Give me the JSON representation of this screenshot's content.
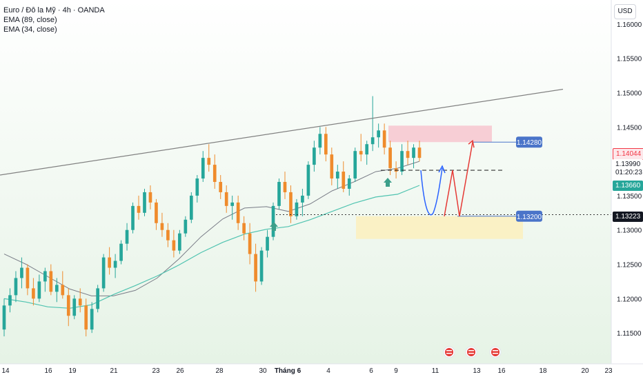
{
  "legend": {
    "symbol": "Euro / Đô la Mỹ · 4h · OANDA",
    "ema1": "EMA (89, close)",
    "ema2": "EMA (34, close)"
  },
  "axis": {
    "currency_button": "USD"
  },
  "colors": {
    "up": "#26a69a",
    "down": "#ef8b2c",
    "ema89": "#787b86",
    "ema34": "#4fc3b0",
    "trend": "#808080",
    "resistance_zone": "#f7c6cf",
    "support_zone": "#fbf0c0",
    "label_blue": "#4a74c9",
    "last_price": "#f23645",
    "arrow_blue": "#2962ff",
    "arrow_red": "#e53935"
  },
  "chart_data": {
    "type": "candlestick",
    "instrument": "Euro / Đô la Mỹ",
    "timeframe": "4h",
    "source": "OANDA",
    "ylim": [
      1.1105,
      1.1635
    ],
    "y_ticks": [
      1.115,
      1.12,
      1.125,
      1.13,
      1.135,
      1.14,
      1.145,
      1.15,
      1.155,
      1.16
    ],
    "y_tick_labels": [
      "1.11500",
      "1.12000",
      "1.12500",
      "1.13000",
      "1.13500",
      "1.14000",
      "1.14500",
      "1.15000",
      "1.15500",
      "1.16000"
    ],
    "x_tick_labels": [
      "14",
      "16",
      "19",
      "21",
      "23",
      "26",
      "28",
      "30",
      "Tháng 6",
      "4",
      "6",
      "9",
      "11",
      "13",
      "16",
      "18",
      "20",
      "23"
    ],
    "ohlc": [
      [
        1.1155,
        1.12,
        1.1145,
        1.119
      ],
      [
        1.119,
        1.1215,
        1.118,
        1.1205
      ],
      [
        1.1205,
        1.124,
        1.1195,
        1.123
      ],
      [
        1.123,
        1.126,
        1.1215,
        1.1245
      ],
      [
        1.1245,
        1.125,
        1.1205,
        1.1215
      ],
      [
        1.1215,
        1.123,
        1.119,
        1.12
      ],
      [
        1.12,
        1.1235,
        1.1195,
        1.1225
      ],
      [
        1.1225,
        1.1245,
        1.121,
        1.124
      ],
      [
        1.124,
        1.125,
        1.1205,
        1.121
      ],
      [
        1.121,
        1.123,
        1.1195,
        1.122
      ],
      [
        1.122,
        1.124,
        1.12,
        1.1205
      ],
      [
        1.1205,
        1.1215,
        1.116,
        1.1175
      ],
      [
        1.1175,
        1.1205,
        1.117,
        1.12
      ],
      [
        1.12,
        1.1215,
        1.118,
        1.119
      ],
      [
        1.119,
        1.12,
        1.1145,
        1.1155
      ],
      [
        1.1155,
        1.1195,
        1.115,
        1.1185
      ],
      [
        1.1185,
        1.122,
        1.118,
        1.1215
      ],
      [
        1.1215,
        1.1265,
        1.121,
        1.126
      ],
      [
        1.126,
        1.1275,
        1.1235,
        1.1245
      ],
      [
        1.1245,
        1.1265,
        1.123,
        1.1255
      ],
      [
        1.1255,
        1.1285,
        1.125,
        1.128
      ],
      [
        1.128,
        1.131,
        1.127,
        1.13
      ],
      [
        1.13,
        1.134,
        1.1295,
        1.1335
      ],
      [
        1.1335,
        1.135,
        1.1315,
        1.1325
      ],
      [
        1.1325,
        1.136,
        1.132,
        1.1355
      ],
      [
        1.1355,
        1.1365,
        1.133,
        1.134
      ],
      [
        1.134,
        1.1345,
        1.13,
        1.131
      ],
      [
        1.131,
        1.1325,
        1.129,
        1.13
      ],
      [
        1.13,
        1.131,
        1.1275,
        1.1285
      ],
      [
        1.1285,
        1.13,
        1.126,
        1.127
      ],
      [
        1.127,
        1.13,
        1.1265,
        1.1295
      ],
      [
        1.1295,
        1.132,
        1.129,
        1.1315
      ],
      [
        1.1315,
        1.1355,
        1.131,
        1.135
      ],
      [
        1.135,
        1.138,
        1.134,
        1.1375
      ],
      [
        1.1375,
        1.1415,
        1.137,
        1.1405
      ],
      [
        1.1405,
        1.1425,
        1.1385,
        1.1395
      ],
      [
        1.1395,
        1.141,
        1.136,
        1.137
      ],
      [
        1.137,
        1.138,
        1.1345,
        1.1355
      ],
      [
        1.1355,
        1.1365,
        1.1325,
        1.1335
      ],
      [
        1.1335,
        1.135,
        1.1315,
        1.134
      ],
      [
        1.134,
        1.135,
        1.13,
        1.131
      ],
      [
        1.131,
        1.132,
        1.1285,
        1.1295
      ],
      [
        1.1295,
        1.131,
        1.125,
        1.1265
      ],
      [
        1.1265,
        1.128,
        1.121,
        1.1225
      ],
      [
        1.1225,
        1.1275,
        1.122,
        1.127
      ],
      [
        1.127,
        1.13,
        1.126,
        1.129
      ],
      [
        1.129,
        1.134,
        1.1285,
        1.1335
      ],
      [
        1.1335,
        1.1375,
        1.133,
        1.137
      ],
      [
        1.137,
        1.1385,
        1.1345,
        1.1355
      ],
      [
        1.1355,
        1.1365,
        1.131,
        1.132
      ],
      [
        1.132,
        1.1345,
        1.1315,
        1.134
      ],
      [
        1.134,
        1.136,
        1.132,
        1.135
      ],
      [
        1.135,
        1.14,
        1.1345,
        1.1395
      ],
      [
        1.1395,
        1.143,
        1.1385,
        1.142
      ],
      [
        1.142,
        1.145,
        1.141,
        1.144
      ],
      [
        1.144,
        1.145,
        1.14,
        1.141
      ],
      [
        1.141,
        1.142,
        1.1365,
        1.1375
      ],
      [
        1.1375,
        1.1395,
        1.136,
        1.1385
      ],
      [
        1.1385,
        1.14,
        1.1355,
        1.136
      ],
      [
        1.136,
        1.138,
        1.135,
        1.1375
      ],
      [
        1.1375,
        1.142,
        1.137,
        1.1415
      ],
      [
        1.1415,
        1.144,
        1.14,
        1.141
      ],
      [
        1.141,
        1.143,
        1.1395,
        1.1425
      ],
      [
        1.1425,
        1.1495,
        1.1415,
        1.1435
      ],
      [
        1.1435,
        1.1455,
        1.142,
        1.1445
      ],
      [
        1.1445,
        1.1455,
        1.141,
        1.142
      ],
      [
        1.142,
        1.143,
        1.138,
        1.139
      ],
      [
        1.139,
        1.14,
        1.1375,
        1.1385
      ],
      [
        1.1385,
        1.1425,
        1.138,
        1.1415
      ],
      [
        1.1415,
        1.143,
        1.1395,
        1.1405
      ],
      [
        1.1405,
        1.1425,
        1.139,
        1.142
      ],
      [
        1.142,
        1.143,
        1.14,
        1.1405
      ]
    ],
    "ema89": [
      1.1265,
      1.125,
      1.1232,
      1.1214,
      1.1204,
      1.1204,
      1.1212,
      1.123,
      1.1258,
      1.129,
      1.1316,
      1.1332,
      1.1334,
      1.1327,
      1.1338,
      1.1357,
      1.137,
      1.1385,
      1.139,
      1.14
    ],
    "ema34": [
      1.12,
      1.1195,
      1.1188,
      1.1186,
      1.1191,
      1.1206,
      1.1219,
      1.1233,
      1.1249,
      1.1267,
      1.1282,
      1.1294,
      1.1301,
      1.1305,
      1.1315,
      1.1327,
      1.1339,
      1.1348,
      1.1352,
      1.1365
    ],
    "trendline": [
      [
        1.138,
        1.1505
      ]
    ],
    "resistance_zone": [
      1.1428,
      1.1452
    ],
    "support_zone": [
      1.1297,
      1.132
    ],
    "dashed_level": 1.1387,
    "levels": [
      {
        "label": "1.14280",
        "value": 1.1428
      },
      {
        "label": "1.13200",
        "value": 1.132
      }
    ],
    "price_tags": [
      {
        "label": "1.14044",
        "value": 1.14044,
        "color": "#f23645",
        "text_color": "#f23645"
      },
      {
        "label": "1.13990",
        "value": 1.1399,
        "color": "#ffffff",
        "text_color": "#131722"
      },
      {
        "label": "01:20:23",
        "value": 1.139,
        "color": "#ffffff",
        "text_color": "#131722"
      },
      {
        "label": "1.13660",
        "value": 1.1366,
        "color": "#26a69a",
        "text_color": "#ffffff"
      },
      {
        "label": "1.13223",
        "value": 1.13223,
        "color": "#131722",
        "text_color": "#ffffff"
      }
    ]
  }
}
